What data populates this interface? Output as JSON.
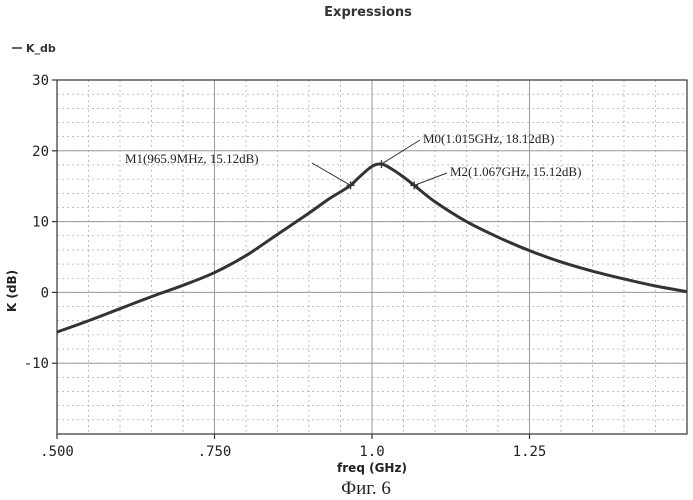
{
  "chart_data": {
    "type": "line",
    "title": "Expressions",
    "xlabel": "freq (GHz)",
    "ylabel": "K (dB)",
    "xlim": [
      0.5,
      1.5
    ],
    "ylim": [
      -20,
      30
    ],
    "grid": true,
    "legend_position": "top-left",
    "x_ticks": [
      {
        "value": 0.5,
        "label": ".500"
      },
      {
        "value": 0.75,
        "label": ".750"
      },
      {
        "value": 1.0,
        "label": "1.0"
      },
      {
        "value": 1.25,
        "label": "1.25"
      }
    ],
    "y_ticks": [
      {
        "value": 30,
        "label": "30"
      },
      {
        "value": 20,
        "label": "20"
      },
      {
        "value": 10,
        "label": "10"
      },
      {
        "value": 0,
        "label": "0"
      },
      {
        "value": -10,
        "label": "-10"
      }
    ],
    "series": [
      {
        "name": "K_db",
        "x": [
          0.5,
          0.55,
          0.6,
          0.65,
          0.7,
          0.75,
          0.8,
          0.85,
          0.9,
          0.93,
          0.95,
          0.966,
          0.98,
          1.0,
          1.015,
          1.03,
          1.05,
          1.067,
          1.1,
          1.15,
          1.2,
          1.25,
          1.3,
          1.35,
          1.4,
          1.45,
          1.5
        ],
        "y": [
          -5.6,
          -4.0,
          -2.3,
          -0.6,
          1.0,
          2.8,
          5.2,
          8.2,
          11.2,
          13.1,
          14.2,
          15.12,
          16.3,
          17.8,
          18.12,
          17.5,
          16.3,
          15.12,
          12.8,
          10.0,
          7.8,
          5.9,
          4.3,
          3.0,
          1.9,
          0.9,
          0.1
        ]
      }
    ],
    "markers": [
      {
        "label": "M0(1.015GHz, 18.12dB)",
        "x": 1.015,
        "y": 18.12
      },
      {
        "label": "M1(965.9MHz, 15.12dB)",
        "x": 0.9659,
        "y": 15.12
      },
      {
        "label": "M2(1.067GHz, 15.12dB)",
        "x": 1.067,
        "y": 15.12
      }
    ],
    "caption": "Фиг. 6"
  },
  "colors": {
    "line": "#333333",
    "grid": "#9a9a9a",
    "axis": "#333333"
  }
}
